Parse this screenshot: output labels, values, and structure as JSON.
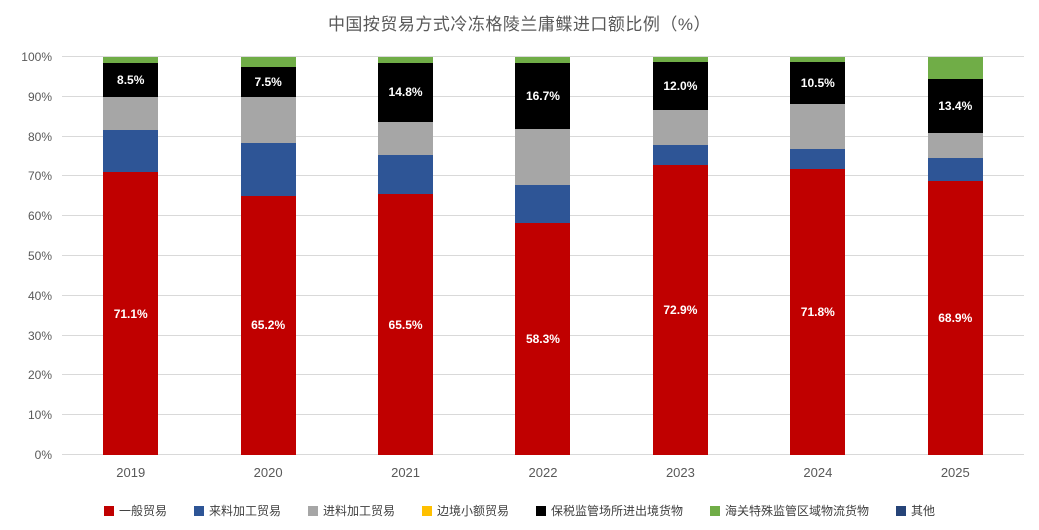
{
  "chart_data": {
    "type": "bar",
    "stacked": true,
    "percent_stacked": true,
    "title": "中国按贸易方式冷冻格陵兰庸鲽进口额比例（%）",
    "xlabel": "",
    "ylabel": "",
    "ylim": [
      0,
      100
    ],
    "grid": true,
    "legend_position": "bottom",
    "categories": [
      "2019",
      "2020",
      "2021",
      "2022",
      "2023",
      "2024",
      "2025"
    ],
    "y_ticks": [
      "0%",
      "10%",
      "20%",
      "30%",
      "40%",
      "50%",
      "60%",
      "70%",
      "80%",
      "90%",
      "100%"
    ],
    "series": [
      {
        "name": "一般贸易",
        "color": "#C00000",
        "values": [
          71.1,
          65.2,
          65.5,
          58.3,
          72.9,
          71.8,
          68.9
        ],
        "labels": [
          "71.1%",
          "65.2%",
          "65.5%",
          "58.3%",
          "72.9%",
          "71.8%",
          "68.9%"
        ]
      },
      {
        "name": "来料加工贸易",
        "color": "#2E5596",
        "values": [
          10.5,
          13.1,
          9.8,
          9.5,
          5.0,
          5.2,
          5.7
        ],
        "labels": null
      },
      {
        "name": "进料加工贸易",
        "color": "#A6A6A6",
        "values": [
          8.3,
          11.6,
          8.4,
          14.1,
          8.9,
          11.2,
          6.4
        ],
        "labels": null
      },
      {
        "name": "边境小额贸易",
        "color": "#FFC000",
        "values": [
          0,
          0,
          0,
          0,
          0,
          0,
          0
        ],
        "labels": null
      },
      {
        "name": "保税监管场所进出境货物",
        "color": "#000000",
        "values": [
          8.5,
          7.5,
          14.8,
          16.7,
          12.0,
          10.5,
          13.4
        ],
        "labels": [
          "8.5%",
          "7.5%",
          "14.8%",
          "16.7%",
          "12.0%",
          "10.5%",
          "13.4%"
        ]
      },
      {
        "name": "海关特殊监管区域物流货物",
        "color": "#70AD47",
        "values": [
          1.6,
          2.6,
          1.5,
          1.4,
          1.2,
          1.3,
          5.6
        ],
        "labels": null
      },
      {
        "name": "其他",
        "color": "#264478",
        "values": [
          0,
          0,
          0,
          0,
          0,
          0,
          0
        ],
        "labels": null
      }
    ],
    "colors": {
      "grid": "#d9d9d9",
      "axis_text": "#595959",
      "title_text": "#595959",
      "legend_text": "#404040",
      "data_label_text": "#ffffff"
    }
  }
}
